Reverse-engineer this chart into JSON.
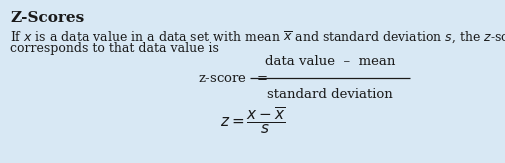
{
  "bg_color": "#d8e8f4",
  "title": "Z-Scores",
  "title_fontsize": 11,
  "body_fontsize": 9,
  "formula_fontsize": 9.5,
  "formula2_fontsize": 11,
  "text_color": "#1a1a1a",
  "body_line1": "If $x$ is a data value in a data set with mean $\\overline{x}$ and standard deviation $s$, the $z$-score that",
  "body_line2": "corresponds to that data value is",
  "formula_label": "z-score  $=$",
  "numerator": "data value  –  mean",
  "denominator": "standard deviation",
  "formula2": "$z = \\dfrac{x - \\overline{x}}{s}$"
}
